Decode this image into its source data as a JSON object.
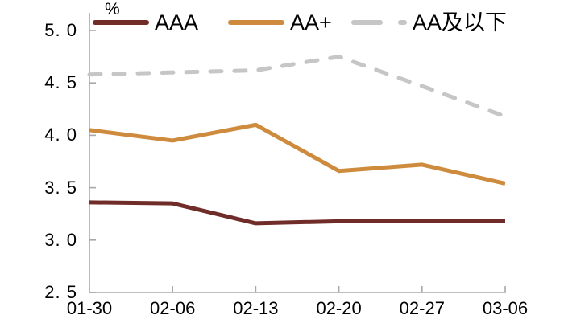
{
  "chart_data": {
    "type": "line",
    "unit_label": "%",
    "categories": [
      "01-30",
      "02-06",
      "02-13",
      "02-20",
      "02-27",
      "03-06"
    ],
    "series": [
      {
        "name": "AAA",
        "color": "#6F2C28",
        "style": "solid",
        "values": [
          3.36,
          3.35,
          3.16,
          3.18,
          3.18,
          3.18
        ]
      },
      {
        "name": "AA+",
        "color": "#CE8B3D",
        "style": "solid",
        "values": [
          4.05,
          3.95,
          4.1,
          3.66,
          3.72,
          3.54
        ]
      },
      {
        "name": "AA及以下",
        "color": "#C6C6C6",
        "style": "dashed",
        "values": [
          4.58,
          4.6,
          4.62,
          4.75,
          4.47,
          4.18
        ]
      }
    ],
    "ylim": [
      2.5,
      5.0
    ],
    "y_ticks": [
      {
        "label": "5. 0",
        "value": 5.0
      },
      {
        "label": "4. 5",
        "value": 4.5
      },
      {
        "label": "4. 0",
        "value": 4.0
      },
      {
        "label": "3. 5",
        "value": 3.5
      },
      {
        "label": "3. 0",
        "value": 3.0
      },
      {
        "label": "2. 5",
        "value": 2.5
      }
    ],
    "grid": false,
    "legend_position": "top",
    "axis_color": "#A8A8A8"
  }
}
